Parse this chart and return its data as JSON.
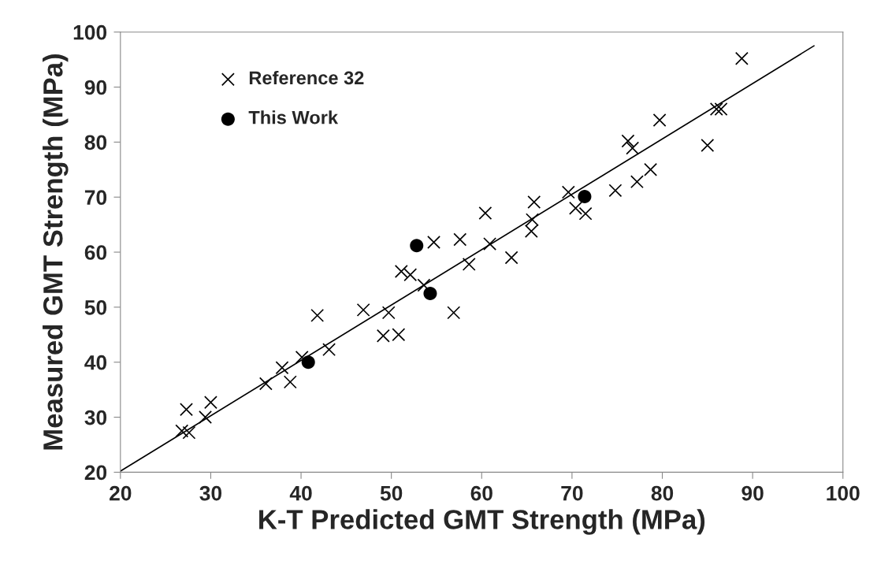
{
  "chart_data": {
    "type": "scatter",
    "xlabel": "K-T Predicted GMT Strength (MPa)",
    "ylabel": "Measured GMT Strength (MPa)",
    "xlim": [
      20,
      100
    ],
    "ylim": [
      20,
      100
    ],
    "xticks": [
      20,
      30,
      40,
      50,
      60,
      70,
      80,
      90,
      100
    ],
    "yticks": [
      20,
      30,
      40,
      50,
      60,
      70,
      80,
      90,
      100
    ],
    "grid": false,
    "legend": "top left",
    "series": [
      {
        "name": "Reference 32",
        "color": "#000000",
        "marker": "cross",
        "x": [
          26.8,
          27.3,
          27.6,
          29.4,
          30.0,
          36.1,
          37.9,
          38.8,
          40.1,
          41.8,
          43.1,
          46.9,
          49.1,
          49.7,
          50.8,
          51.1,
          52.1,
          53.6,
          54.7,
          56.9,
          57.6,
          58.6,
          60.4,
          60.9,
          63.3,
          65.5,
          65.6,
          65.8,
          69.6,
          70.4,
          71.5,
          74.8,
          76.2,
          76.7,
          77.2,
          78.7,
          79.7,
          85.0,
          86.0,
          86.5,
          88.8
        ],
        "values": [
          27.5,
          31.4,
          27.2,
          30.0,
          32.7,
          36.1,
          39.0,
          36.4,
          40.9,
          48.5,
          42.3,
          49.5,
          44.8,
          49.0,
          45.0,
          56.5,
          55.9,
          54.0,
          61.8,
          49.0,
          62.3,
          57.8,
          67.1,
          61.5,
          59.0,
          63.8,
          65.9,
          69.1,
          70.9,
          68.0,
          67.0,
          71.2,
          80.2,
          78.9,
          72.8,
          75.0,
          84.0,
          79.4,
          86.0,
          86.0,
          95.2
        ]
      },
      {
        "name": "This Work",
        "color": "#000000",
        "marker": "circle",
        "x": [
          40.8,
          52.8,
          54.3,
          71.4
        ],
        "values": [
          40.0,
          61.2,
          52.5,
          70.1
        ]
      },
      {
        "type": "line",
        "color": "#000000",
        "line_style": "solid",
        "x": [
          20,
          96.8
        ],
        "values": [
          20.2,
          97.5
        ]
      }
    ]
  }
}
